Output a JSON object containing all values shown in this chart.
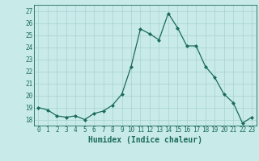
{
  "x": [
    0,
    1,
    2,
    3,
    4,
    5,
    6,
    7,
    8,
    9,
    10,
    11,
    12,
    13,
    14,
    15,
    16,
    17,
    18,
    19,
    20,
    21,
    22,
    23
  ],
  "y": [
    19.0,
    18.8,
    18.3,
    18.2,
    18.3,
    18.0,
    18.5,
    18.7,
    19.2,
    20.1,
    22.4,
    25.5,
    25.1,
    24.6,
    26.8,
    25.6,
    24.1,
    24.1,
    22.4,
    21.5,
    20.1,
    19.4,
    17.7,
    18.2
  ],
  "line_color": "#1a6b5a",
  "marker": "D",
  "marker_size": 2,
  "bg_color": "#c8eae8",
  "grid_color": "#9ecfcb",
  "xlabel": "Humidex (Indice chaleur)",
  "xlim": [
    -0.5,
    23.5
  ],
  "ylim": [
    17.5,
    27.5
  ],
  "yticks": [
    18,
    19,
    20,
    21,
    22,
    23,
    24,
    25,
    26,
    27
  ],
  "xticks": [
    0,
    1,
    2,
    3,
    4,
    5,
    6,
    7,
    8,
    9,
    10,
    11,
    12,
    13,
    14,
    15,
    16,
    17,
    18,
    19,
    20,
    21,
    22,
    23
  ],
  "tick_label_fontsize": 5.5,
  "xlabel_fontsize": 7.0,
  "linewidth": 0.9
}
